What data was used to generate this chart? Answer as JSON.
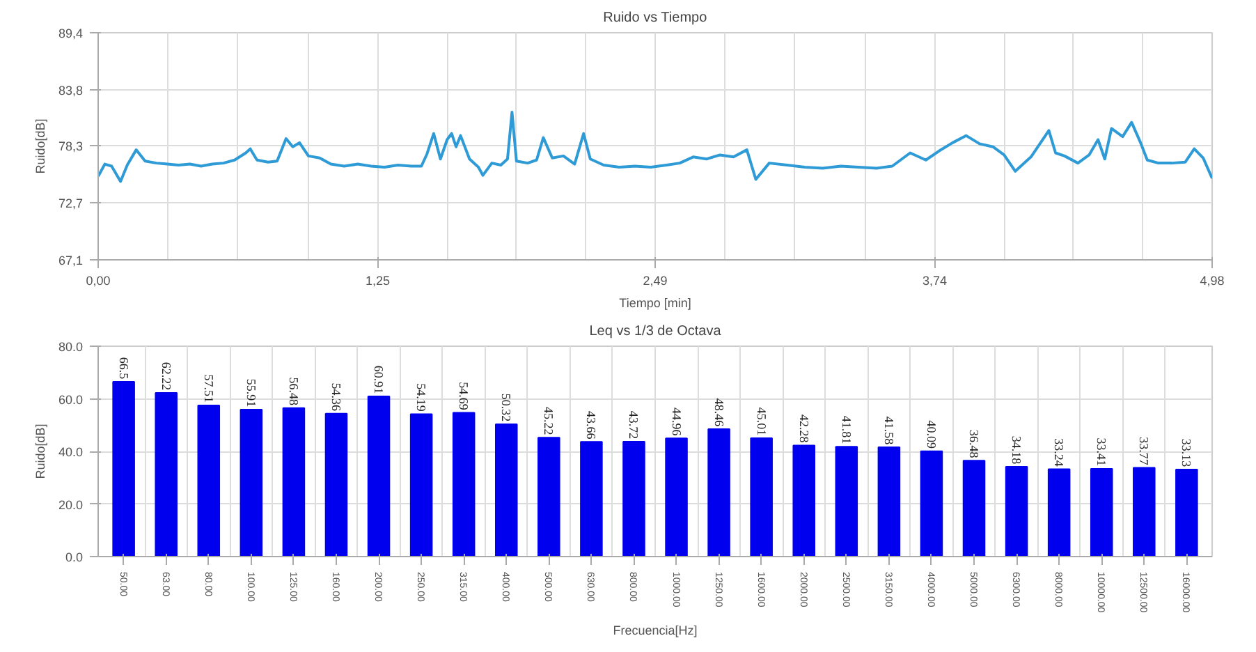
{
  "chart_data": [
    {
      "type": "line",
      "title": "Ruido vs Tiempo",
      "xlabel": "Tiempo [min]",
      "ylabel": "Ruido[dB]",
      "x": [
        0.0,
        0.03,
        0.06,
        0.1,
        0.13,
        0.17,
        0.21,
        0.26,
        0.31,
        0.36,
        0.41,
        0.46,
        0.51,
        0.56,
        0.61,
        0.66,
        0.68,
        0.71,
        0.76,
        0.8,
        0.84,
        0.87,
        0.9,
        0.94,
        0.99,
        1.04,
        1.1,
        1.16,
        1.22,
        1.28,
        1.34,
        1.4,
        1.445,
        1.47,
        1.5,
        1.53,
        1.56,
        1.58,
        1.6,
        1.62,
        1.66,
        1.7,
        1.72,
        1.76,
        1.8,
        1.83,
        1.85,
        1.87,
        1.92,
        1.96,
        1.99,
        2.03,
        2.08,
        2.13,
        2.17,
        2.2,
        2.26,
        2.33,
        2.4,
        2.47,
        2.54,
        2.6,
        2.66,
        2.72,
        2.78,
        2.84,
        2.9,
        2.94,
        3.0,
        3.08,
        3.16,
        3.24,
        3.32,
        3.4,
        3.48,
        3.55,
        3.63,
        3.7,
        3.76,
        3.82,
        3.88,
        3.94,
        4.0,
        4.05,
        4.1,
        4.17,
        4.25,
        4.28,
        4.32,
        4.38,
        4.43,
        4.47,
        4.5,
        4.53,
        4.58,
        4.62,
        4.66,
        4.69,
        4.74,
        4.8,
        4.86,
        4.9,
        4.94,
        4.98
      ],
      "series": [
        {
          "color": "#2e9bd6",
          "values": [
            75.3,
            76.5,
            76.3,
            74.8,
            76.4,
            77.9,
            76.8,
            76.6,
            76.5,
            76.4,
            76.5,
            76.3,
            76.5,
            76.6,
            76.9,
            77.6,
            78.0,
            76.9,
            76.7,
            76.8,
            79.0,
            78.2,
            78.6,
            77.3,
            77.1,
            76.5,
            76.3,
            76.5,
            76.3,
            76.2,
            76.4,
            76.3,
            76.3,
            77.5,
            79.5,
            77.0,
            78.9,
            79.5,
            78.2,
            79.3,
            77.0,
            76.2,
            75.4,
            76.6,
            76.4,
            77.0,
            81.6,
            76.8,
            76.6,
            76.9,
            79.1,
            77.1,
            77.3,
            76.5,
            79.5,
            77.0,
            76.4,
            76.2,
            76.3,
            76.2,
            76.4,
            76.6,
            77.2,
            77.0,
            77.4,
            77.2,
            77.9,
            75.0,
            76.6,
            76.4,
            76.2,
            76.1,
            76.3,
            76.2,
            76.1,
            76.3,
            77.6,
            76.9,
            77.8,
            78.6,
            79.3,
            78.5,
            78.2,
            77.4,
            75.8,
            77.2,
            79.8,
            77.6,
            77.3,
            76.6,
            77.4,
            78.9,
            77.0,
            80.0,
            79.2,
            80.6,
            78.6,
            76.9,
            76.6,
            76.6,
            76.7,
            78.0,
            77.1,
            75.1
          ]
        }
      ],
      "xlim": [
        0,
        4.98
      ],
      "ylim": [
        67.1,
        89.4
      ],
      "xticks": [
        {
          "value": 0,
          "label": "0,00"
        },
        {
          "value": 1.25,
          "label": "1,25"
        },
        {
          "value": 2.49,
          "label": "2,49"
        },
        {
          "value": 3.74,
          "label": "3,74"
        },
        {
          "value": 4.98,
          "label": "4,98"
        }
      ],
      "yticks": [
        {
          "value": 67.1,
          "label": "67,1"
        },
        {
          "value": 72.7,
          "label": "72,7"
        },
        {
          "value": 78.3,
          "label": "78,3"
        },
        {
          "value": 83.8,
          "label": "83,8"
        },
        {
          "value": 89.4,
          "label": "89,4"
        }
      ],
      "grid": true
    },
    {
      "type": "bar",
      "title": "Leq vs 1/3 de Octava",
      "xlabel": "Frecuencia[Hz]",
      "ylabel": "Ruido[dB]",
      "categories": [
        "50.00",
        "63.00",
        "80.00",
        "100.00",
        "125.00",
        "160.00",
        "200.00",
        "250.00",
        "315.00",
        "400.00",
        "500.00",
        "630.00",
        "800.00",
        "1000.00",
        "1250.00",
        "1600.00",
        "2000.00",
        "2500.00",
        "3150.00",
        "4000.00",
        "5000.00",
        "6300.00",
        "8000.00",
        "10000.00",
        "12500.00",
        "16000.00"
      ],
      "values": [
        66.5,
        62.22,
        57.51,
        55.91,
        56.48,
        54.36,
        60.91,
        54.19,
        54.69,
        50.32,
        45.22,
        43.66,
        43.72,
        44.96,
        48.46,
        45.01,
        42.28,
        41.81,
        41.58,
        40.09,
        36.48,
        34.18,
        33.24,
        33.41,
        33.77,
        33.13
      ],
      "value_labels": [
        "66.5",
        "62.22",
        "57.51",
        "55.91",
        "56.48",
        "54.36",
        "60.91",
        "54.19",
        "54.69",
        "50.32",
        "45.22",
        "43.66",
        "43.72",
        "44.96",
        "48.46",
        "45.01",
        "42.28",
        "41.81",
        "41.58",
        "40.09",
        "36.48",
        "34.18",
        "33.24",
        "33.41",
        "33.77",
        "33.13"
      ],
      "color": "#0000ee",
      "ylim": [
        0,
        80
      ],
      "yticks": [
        {
          "value": 0,
          "label": "0.0"
        },
        {
          "value": 20,
          "label": "20.0"
        },
        {
          "value": 40,
          "label": "40.0"
        },
        {
          "value": 60,
          "label": "60.0"
        },
        {
          "value": 80,
          "label": "80.0"
        }
      ],
      "grid": true
    }
  ]
}
